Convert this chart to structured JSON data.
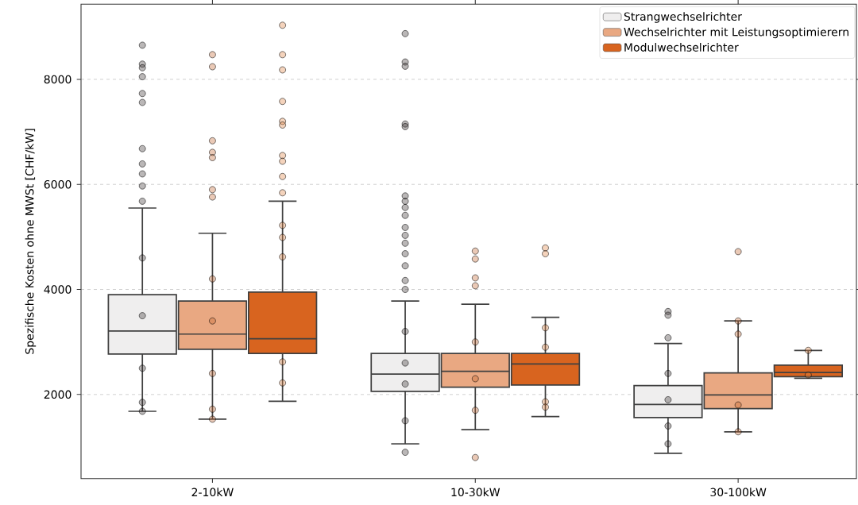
{
  "chart_data": {
    "type": "box",
    "ylabel": "Spezifische Kosten ohne MWSt [CHF/kW]",
    "categories": [
      "2-10kW",
      "10-30kW",
      "30-100kW"
    ],
    "ylim": [
      400,
      9430
    ],
    "yticks": [
      2000,
      4000,
      6000,
      8000
    ],
    "grid": "y",
    "legend": "top right",
    "series": [
      {
        "name": "Strangwechselrichter",
        "color": "#efeeee",
        "boxes": [
          {
            "low": 1680,
            "q1": 2770,
            "median": 3210,
            "q3": 3900,
            "high": 5550
          },
          {
            "low": 1060,
            "q1": 2060,
            "median": 2390,
            "q3": 2780,
            "high": 3780
          },
          {
            "low": 880,
            "q1": 1560,
            "median": 1810,
            "q3": 2170,
            "high": 2970
          }
        ]
      },
      {
        "name": "Wechselrichter mit Leistungsoptimierern",
        "color": "#e9a882",
        "boxes": [
          {
            "low": 1530,
            "q1": 2860,
            "median": 3150,
            "q3": 3780,
            "high": 5070
          },
          {
            "low": 1330,
            "q1": 2140,
            "median": 2440,
            "q3": 2780,
            "high": 3720
          },
          {
            "low": 1290,
            "q1": 1730,
            "median": 1990,
            "q3": 2410,
            "high": 3400
          }
        ]
      },
      {
        "name": "Modulwechselrichter",
        "color": "#d8641f",
        "boxes": [
          {
            "low": 1870,
            "q1": 2780,
            "median": 3060,
            "q3": 3950,
            "high": 5680
          },
          {
            "low": 1580,
            "q1": 2180,
            "median": 2580,
            "q3": 2780,
            "high": 3470
          },
          {
            "low": 2310,
            "q1": 2340,
            "median": 2420,
            "q3": 2560,
            "high": 2840
          }
        ]
      },
      {
        "type": "scatter",
        "color": "#3a3232",
        "x": [
          "2-10kW",
          "2-10kW",
          "2-10kW",
          "2-10kW",
          "2-10kW",
          "2-10kW",
          "2-10kW",
          "2-10kW",
          "2-10kW",
          "2-10kW",
          "2-10kW",
          "2-10kW",
          "2-10kW",
          "2-10kW",
          "2-10kW",
          "2-10kW",
          "10-30kW",
          "10-30kW",
          "10-30kW",
          "10-30kW",
          "10-30kW",
          "10-30kW",
          "10-30kW",
          "10-30kW",
          "10-30kW",
          "10-30kW",
          "10-30kW",
          "10-30kW",
          "10-30kW",
          "10-30kW",
          "10-30kW",
          "10-30kW",
          "10-30kW",
          "10-30kW",
          "10-30kW",
          "10-30kW",
          "10-30kW",
          "30-100kW",
          "30-100kW",
          "30-100kW",
          "30-100kW",
          "30-100kW",
          "30-100kW",
          "30-100kW"
        ],
        "values": [
          8650,
          8290,
          8220,
          8050,
          7730,
          7560,
          6680,
          6390,
          6200,
          5970,
          5680,
          4600,
          3500,
          2500,
          1850,
          1680,
          8870,
          8330,
          8250,
          7150,
          7100,
          5780,
          5680,
          5560,
          5410,
          5180,
          5030,
          4880,
          4680,
          4450,
          4170,
          4000,
          3200,
          2600,
          2200,
          1500,
          900,
          3580,
          3510,
          3080,
          2400,
          1900,
          1400,
          1060
        ]
      },
      {
        "type": "scatter",
        "color": "#c2652f",
        "x": [
          "2-10kW",
          "2-10kW",
          "2-10kW",
          "2-10kW",
          "2-10kW",
          "2-10kW",
          "2-10kW",
          "2-10kW",
          "2-10kW",
          "2-10kW",
          "2-10kW",
          "2-10kW",
          "10-30kW",
          "10-30kW",
          "10-30kW",
          "10-30kW",
          "10-30kW",
          "10-30kW",
          "10-30kW",
          "10-30kW",
          "30-100kW",
          "30-100kW",
          "30-100kW",
          "30-100kW",
          "30-100kW"
        ],
        "values": [
          8470,
          8240,
          6830,
          6610,
          6510,
          5900,
          5760,
          4200,
          3400,
          2400,
          1720,
          1530,
          4730,
          4580,
          4220,
          4070,
          3000,
          2300,
          1700,
          800,
          4720,
          3400,
          3150,
          1800,
          1290
        ]
      },
      {
        "type": "scatter",
        "color": "#e0803f",
        "x": [
          "2-10kW",
          "2-10kW",
          "2-10kW",
          "2-10kW",
          "2-10kW",
          "2-10kW",
          "2-10kW",
          "2-10kW",
          "2-10kW",
          "2-10kW",
          "2-10kW",
          "2-10kW",
          "2-10kW",
          "2-10kW",
          "2-10kW",
          "10-30kW",
          "10-30kW",
          "10-30kW",
          "10-30kW",
          "10-30kW",
          "10-30kW",
          "30-100kW",
          "30-100kW"
        ],
        "values": [
          9030,
          8470,
          8180,
          7580,
          7200,
          7130,
          6550,
          6440,
          6150,
          5840,
          5220,
          4990,
          4620,
          2620,
          2220,
          4790,
          4680,
          3270,
          2900,
          1860,
          1760,
          2840,
          2370
        ]
      }
    ]
  }
}
